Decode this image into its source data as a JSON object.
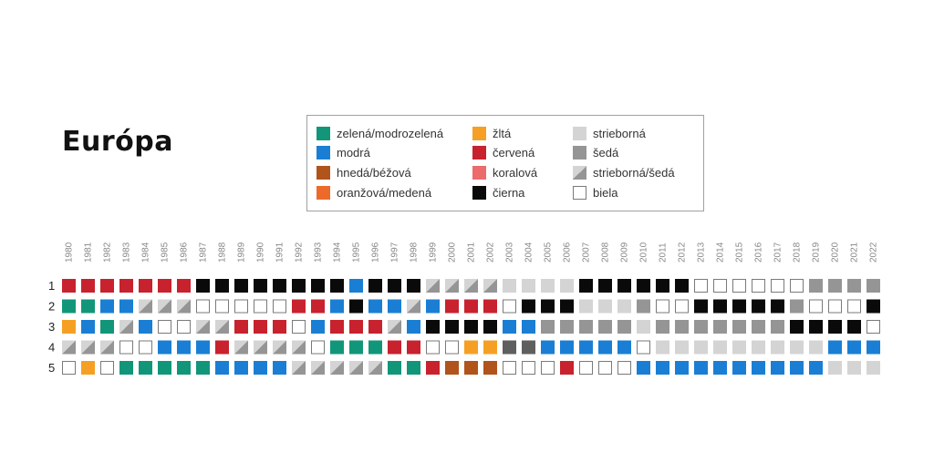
{
  "title": "Európa",
  "legend": [
    {
      "key": "green",
      "label": "zelená/modrozelená"
    },
    {
      "key": "blue",
      "label": "modrá"
    },
    {
      "key": "brown",
      "label": "hnedá/béžová"
    },
    {
      "key": "orange",
      "label": "oranžová/medená"
    },
    {
      "key": "yellow",
      "label": "žltá"
    },
    {
      "key": "red",
      "label": "červená"
    },
    {
      "key": "coral",
      "label": "koralová"
    },
    {
      "key": "black",
      "label": "čierna"
    },
    {
      "key": "silver",
      "label": "strieborná"
    },
    {
      "key": "gray",
      "label": "šedá"
    },
    {
      "key": "silvergray",
      "label": "strieborná/šedá"
    },
    {
      "key": "white",
      "label": "biela"
    }
  ],
  "colors": {
    "green": "#12967a",
    "blue": "#1a7fd4",
    "brown": "#b0541c",
    "orange": "#ec6a2a",
    "yellow": "#f5a024",
    "red": "#c8222e",
    "coral": "#ec6b6b",
    "black": "#0a0a0a",
    "silver": "#d4d4d4",
    "gray": "#959595",
    "silvergray": "split",
    "white": "#ffffff",
    "darkgray": "#5f5f5f",
    "border": "#7a7a7a"
  },
  "chart_data": {
    "type": "table",
    "years": [
      "1980",
      "1981",
      "1982",
      "1983",
      "1984",
      "1985",
      "1986",
      "1987",
      "1988",
      "1989",
      "1990",
      "1991",
      "1992",
      "1993",
      "1994",
      "1995",
      "1996",
      "1997",
      "1998",
      "1999",
      "2000",
      "2001",
      "2002",
      "2003",
      "2004",
      "2005",
      "2006",
      "2007",
      "2008",
      "2009",
      "2010",
      "2011",
      "2012",
      "2013",
      "2014",
      "2015",
      "2016",
      "2017",
      "2018",
      "2019",
      "2020",
      "2021",
      "2022"
    ],
    "ranks": [
      "1",
      "2",
      "3",
      "4",
      "5"
    ],
    "rows": [
      [
        "red",
        "red",
        "red",
        "red",
        "red",
        "red",
        "red",
        "black",
        "black",
        "black",
        "black",
        "black",
        "black",
        "black",
        "black",
        "blue",
        "black",
        "black",
        "black",
        "silvergray",
        "silvergray",
        "silvergray",
        "silvergray",
        "silver",
        "silver",
        "silver",
        "silver",
        "black",
        "black",
        "black",
        "black",
        "black",
        "black",
        "white",
        "white",
        "white",
        "white",
        "white",
        "white",
        "gray",
        "gray",
        "gray",
        "gray"
      ],
      [
        "green",
        "green",
        "blue",
        "blue",
        "silvergray",
        "silvergray",
        "silvergray",
        "white",
        "white",
        "white",
        "white",
        "white",
        "red",
        "red",
        "blue",
        "black",
        "blue",
        "blue",
        "silvergray",
        "blue",
        "red",
        "red",
        "red",
        "white",
        "black",
        "black",
        "black",
        "silver",
        "silver",
        "silver",
        "gray",
        "white",
        "white",
        "black",
        "black",
        "black",
        "black",
        "black",
        "gray",
        "white",
        "white",
        "white",
        "black"
      ],
      [
        "yellow",
        "blue",
        "green",
        "silvergray",
        "blue",
        "white",
        "white",
        "silvergray",
        "silvergray",
        "red",
        "red",
        "red",
        "white",
        "blue",
        "red",
        "red",
        "red",
        "silvergray",
        "blue",
        "black",
        "black",
        "black",
        "black",
        "blue",
        "blue",
        "gray",
        "gray",
        "gray",
        "gray",
        "gray",
        "silver",
        "gray",
        "gray",
        "gray",
        "gray",
        "gray",
        "gray",
        "gray",
        "black",
        "black",
        "black",
        "black",
        "white"
      ],
      [
        "silvergray",
        "silvergray",
        "silvergray",
        "white",
        "white",
        "blue",
        "blue",
        "blue",
        "red",
        "silvergray",
        "silvergray",
        "silvergray",
        "silvergray",
        "white",
        "green",
        "green",
        "green",
        "red",
        "red",
        "white",
        "white",
        "yellow",
        "yellow",
        "darkgray",
        "darkgray",
        "blue",
        "blue",
        "blue",
        "blue",
        "blue",
        "white",
        "silver",
        "silver",
        "silver",
        "silver",
        "silver",
        "silver",
        "silver",
        "silver",
        "silver",
        "blue",
        "blue",
        "blue"
      ],
      [
        "white",
        "yellow",
        "white",
        "green",
        "green",
        "green",
        "green",
        "green",
        "blue",
        "blue",
        "blue",
        "blue",
        "silvergray",
        "silvergray",
        "silvergray",
        "silvergray",
        "silvergray",
        "green",
        "green",
        "red",
        "brown",
        "brown",
        "brown",
        "white",
        "white",
        "white",
        "red",
        "white",
        "white",
        "white",
        "blue",
        "blue",
        "blue",
        "blue",
        "blue",
        "blue",
        "blue",
        "blue",
        "blue",
        "blue",
        "silver",
        "silver",
        "silver"
      ]
    ]
  }
}
